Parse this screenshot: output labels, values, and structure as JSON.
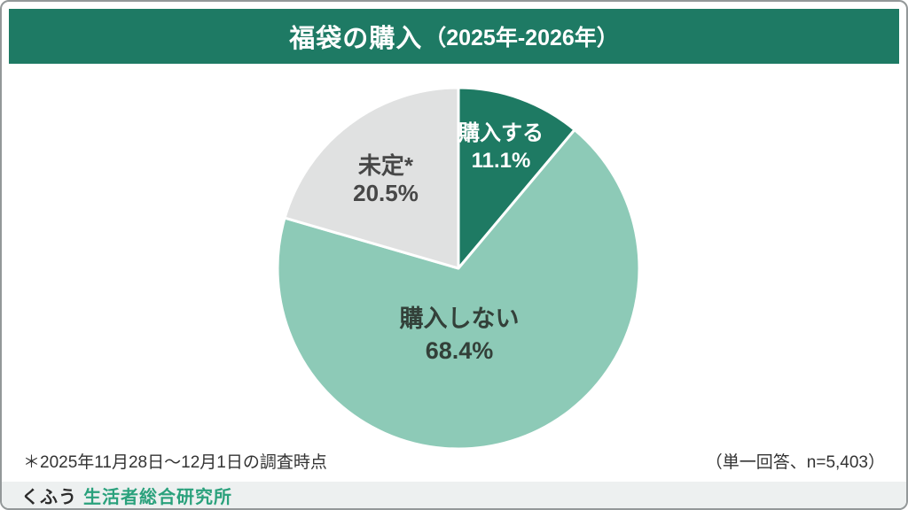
{
  "page": {
    "border_color": "#939899",
    "background_color": "#ffffff"
  },
  "header": {
    "title_main": "福袋の購入",
    "title_paren": "（2025年-2026年）",
    "bg_color": "#1e7a64",
    "text_color": "#ffffff"
  },
  "chart_data": {
    "type": "pie",
    "title": "福袋の購入（2025年-2026年）",
    "start_angle_deg": 0,
    "direction": "clockwise",
    "categories": [
      "購入する",
      "購入しない",
      "未定*"
    ],
    "values": [
      11.1,
      68.4,
      20.5
    ],
    "slices": [
      {
        "label": "購入する",
        "value": 11.1,
        "display": "11.1%",
        "color": "#1e7a63",
        "label_color": "#ffffff"
      },
      {
        "label": "購入しない",
        "value": 68.4,
        "display": "68.4%",
        "color": "#8dcab7",
        "label_color": "#334039"
      },
      {
        "label": "未定*",
        "value": 20.5,
        "display": "20.5%",
        "color": "#e0e1e1",
        "label_color": "#474747"
      }
    ],
    "slice_border_color": "#ffffff",
    "legend": "none"
  },
  "footer": {
    "footnote": "＊2025年11月28日〜12月1日の調査時点",
    "sample_note": "（単一回答、n=5,403）"
  },
  "brand_bar": {
    "bg_color": "#edf0f0",
    "logo_part1": "くふう",
    "logo_part2": "生活者総合研究所",
    "logo_part2_color": "#2aa17c"
  }
}
